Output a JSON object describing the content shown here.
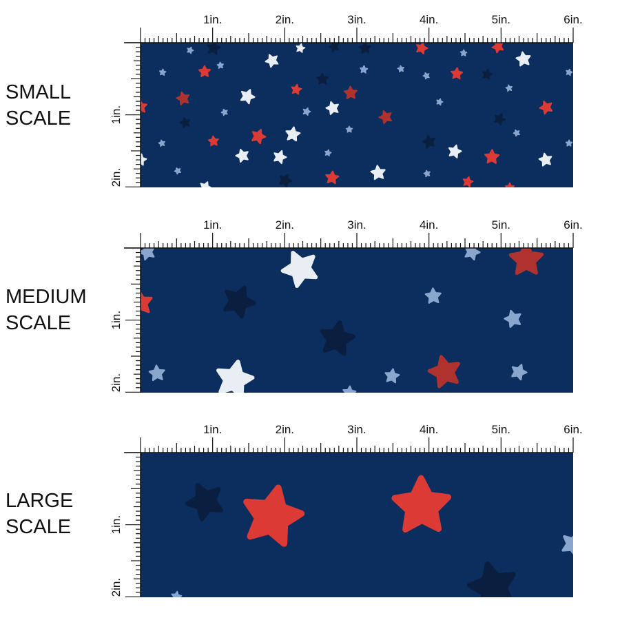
{
  "panels": [
    {
      "label": "SMALL\nSCALE",
      "scale": "small"
    },
    {
      "label": "MEDIUM\nSCALE",
      "scale": "medium"
    },
    {
      "label": "LARGE\nSCALE",
      "scale": "large"
    }
  ],
  "ruler": {
    "horizontal_labels": [
      "1in.",
      "2in.",
      "3in.",
      "4in.",
      "5in.",
      "6in."
    ],
    "vertical_labels": [
      "1in.",
      "2in."
    ]
  },
  "colors": {
    "fabric_background": "#0c2e5e",
    "red_star": "#dc3a35",
    "dark_red_star": "#b0322f",
    "white_star": "#e9eef5",
    "light_blue_star": "#8aa6cf",
    "navy_star": "#0a1f3f"
  }
}
